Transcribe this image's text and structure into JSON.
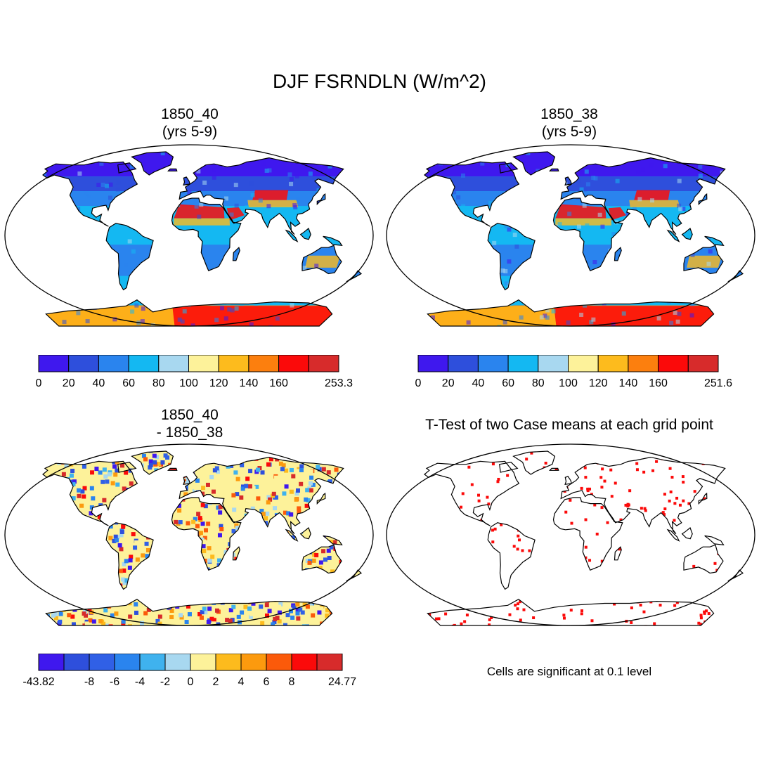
{
  "title": "DJF FSRNDLN (W/m^2)",
  "panels": [
    {
      "title_line1": "1850_40",
      "title_line2": "(yrs 5-9)",
      "kind": "field",
      "scale": "abs"
    },
    {
      "title_line1": "1850_38",
      "title_line2": "(yrs 5-9)",
      "kind": "field",
      "scale": "abs"
    },
    {
      "title_line1": "1850_40",
      "title_line2": "- 1850_38",
      "kind": "diff",
      "scale": "diff"
    },
    {
      "title_line1": "T-Test of two Case means at each grid point",
      "kind": "ttest"
    }
  ],
  "colorbars": [
    {
      "colors": [
        "#3f18ee",
        "#2e4fdc",
        "#2a84ee",
        "#14b8f2",
        "#a8d8f0",
        "#fdf29a",
        "#fdbb1d",
        "#fc7f0e",
        "#fb0a0a",
        "#d72b2b"
      ],
      "labels": [
        "0",
        "20",
        "40",
        "60",
        "80",
        "100",
        "120",
        "140",
        "160",
        "253.3"
      ]
    },
    {
      "colors": [
        "#3f18ee",
        "#2e4fdc",
        "#2a84ee",
        "#14b8f2",
        "#a8d8f0",
        "#fdf29a",
        "#fdbb1d",
        "#fc7f0e",
        "#fb0a0a",
        "#d72b2b"
      ],
      "labels": [
        "0",
        "20",
        "40",
        "60",
        "80",
        "100",
        "120",
        "140",
        "160",
        "251.6"
      ]
    },
    {
      "colors": [
        "#3f18ee",
        "#2e4fdc",
        "#3060e6",
        "#2a84ee",
        "#3fb2ee",
        "#a8d8f0",
        "#fdf29a",
        "#fdbb1d",
        "#fc9a0e",
        "#fb5a0a",
        "#fb0a0a",
        "#d72b2b"
      ],
      "labels": [
        "-43.82",
        "-8",
        "-6",
        "-4",
        "-2",
        "0",
        "2",
        "4",
        "6",
        "8",
        "24.77"
      ]
    }
  ],
  "note": "Cells are significant at 0.1 level"
}
